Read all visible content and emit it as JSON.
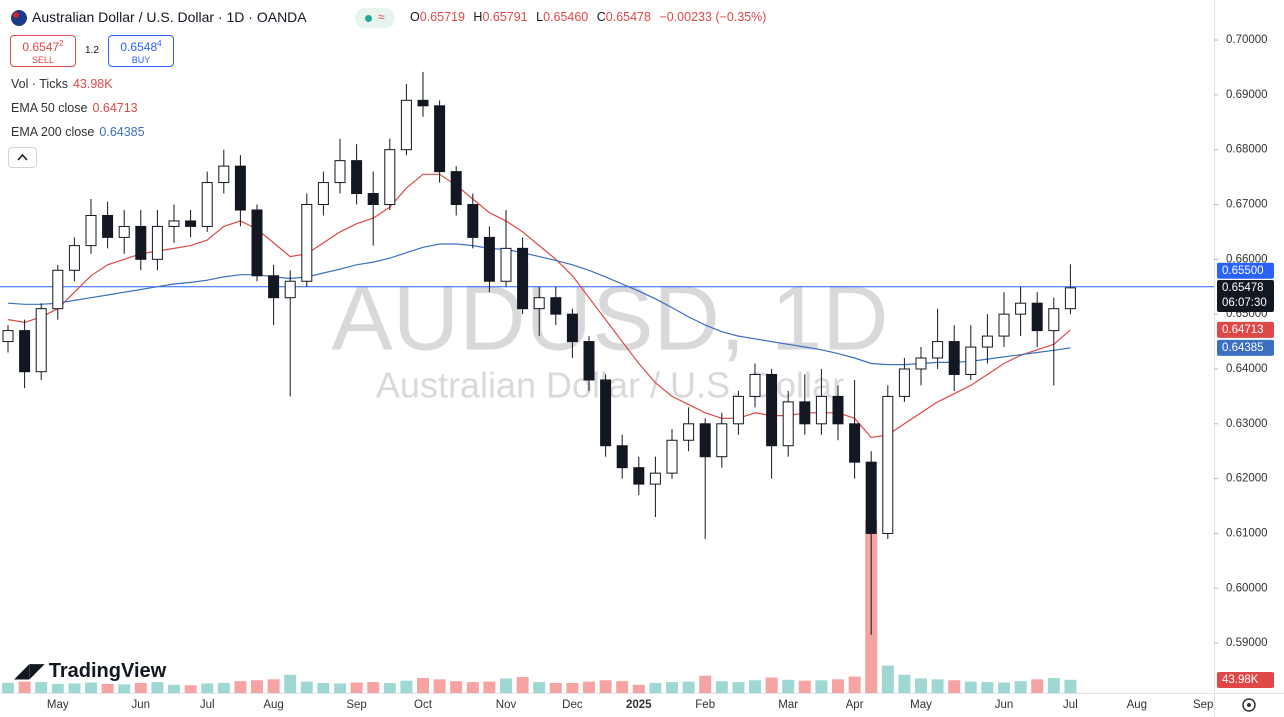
{
  "header": {
    "symbol": "Australian Dollar / U.S. Dollar · 1D · OANDA",
    "ohlc": [
      {
        "label": "O",
        "value": "0.65719"
      },
      {
        "label": "H",
        "value": "0.65791"
      },
      {
        "label": "L",
        "value": "0.65460"
      },
      {
        "label": "C",
        "value": "0.65478"
      }
    ],
    "change": "−0.00233 (−0.35%)"
  },
  "trade": {
    "sell_price": "0.6547",
    "sell_pip": "2",
    "sell": "SELL",
    "spread": "1.2",
    "buy_price": "0.6548",
    "buy_pip": "4",
    "buy": "BUY"
  },
  "watermark": {
    "title": "AUDUSD, 1D",
    "subtitle": "Australian Dollar / U.S. Dollar"
  },
  "logo": "TradingView",
  "chart_data": {
    "type": "candlestick",
    "categories": [
      null,
      null,
      null,
      "May",
      null,
      null,
      null,
      null,
      "Jun",
      null,
      null,
      null,
      "Jul",
      null,
      null,
      null,
      "Aug",
      null,
      null,
      null,
      null,
      "Sep",
      null,
      null,
      null,
      "Oct",
      null,
      null,
      null,
      null,
      "Nov",
      null,
      null,
      null,
      "Dec",
      null,
      null,
      null,
      "2025",
      null,
      null,
      null,
      "Feb",
      null,
      null,
      null,
      null,
      "Mar",
      null,
      null,
      null,
      "Apr",
      null,
      null,
      null,
      "May",
      null,
      null,
      null,
      null,
      "Jun",
      null,
      null,
      null,
      "Jul",
      null,
      null,
      null,
      "Aug",
      null,
      null,
      null,
      "Sep",
      null
    ],
    "open": [
      0.645,
      0.647,
      0.6395,
      0.651,
      0.658,
      0.6625,
      0.668,
      0.664,
      0.666,
      0.66,
      0.666,
      0.667,
      0.666,
      0.674,
      0.677,
      0.669,
      0.657,
      0.653,
      0.656,
      0.67,
      0.674,
      0.678,
      0.672,
      0.67,
      0.68,
      0.689,
      0.688,
      0.676,
      0.67,
      0.664,
      0.656,
      0.662,
      0.651,
      0.653,
      0.65,
      0.645,
      0.638,
      0.626,
      0.622,
      0.619,
      0.621,
      0.627,
      0.63,
      0.624,
      0.63,
      0.635,
      0.639,
      0.626,
      0.634,
      0.63,
      0.635,
      0.63,
      0.623,
      0.61,
      0.635,
      0.64,
      0.642,
      0.645,
      0.639,
      0.644,
      0.646,
      0.65,
      0.652,
      0.647,
      0.651,
      null,
      null,
      null,
      null,
      null,
      null,
      null,
      null,
      null
    ],
    "high": [
      0.648,
      0.649,
      0.652,
      0.659,
      0.664,
      0.671,
      0.6705,
      0.669,
      0.669,
      0.669,
      0.67,
      0.669,
      0.676,
      0.68,
      0.679,
      0.67,
      0.659,
      0.658,
      0.672,
      0.676,
      0.682,
      0.681,
      0.676,
      0.682,
      0.692,
      0.6942,
      0.689,
      0.677,
      0.672,
      0.666,
      0.669,
      0.664,
      0.655,
      0.655,
      0.651,
      0.646,
      0.639,
      0.628,
      0.624,
      0.624,
      0.629,
      0.633,
      0.631,
      0.632,
      0.636,
      0.641,
      0.64,
      0.636,
      0.639,
      0.64,
      0.637,
      0.638,
      0.625,
      0.637,
      0.642,
      0.644,
      0.651,
      0.648,
      0.648,
      0.65,
      0.654,
      0.655,
      0.654,
      0.653,
      0.6591,
      null,
      null,
      null,
      null,
      null,
      null,
      null,
      null,
      null
    ],
    "low": [
      0.643,
      0.6365,
      0.638,
      0.649,
      0.656,
      0.661,
      0.662,
      0.661,
      0.658,
      0.658,
      0.663,
      0.664,
      0.665,
      0.672,
      0.666,
      0.656,
      0.648,
      0.635,
      0.655,
      0.668,
      0.672,
      0.67,
      0.6625,
      0.669,
      0.679,
      0.686,
      0.674,
      0.668,
      0.662,
      0.654,
      0.655,
      0.65,
      0.646,
      0.648,
      0.642,
      0.636,
      0.624,
      0.62,
      0.617,
      0.613,
      0.62,
      0.625,
      0.609,
      0.622,
      0.628,
      0.633,
      0.62,
      0.624,
      0.628,
      0.628,
      0.627,
      0.62,
      0.5915,
      0.609,
      0.634,
      0.637,
      0.64,
      0.636,
      0.638,
      0.641,
      0.644,
      0.646,
      0.644,
      0.637,
      0.65,
      null,
      null,
      null,
      null,
      null,
      null,
      null,
      null,
      null
    ],
    "close": [
      0.647,
      0.6395,
      0.651,
      0.658,
      0.6625,
      0.668,
      0.664,
      0.666,
      0.66,
      0.666,
      0.667,
      0.666,
      0.674,
      0.677,
      0.669,
      0.657,
      0.653,
      0.656,
      0.67,
      0.674,
      0.678,
      0.672,
      0.67,
      0.68,
      0.689,
      0.688,
      0.676,
      0.67,
      0.664,
      0.656,
      0.662,
      0.651,
      0.653,
      0.65,
      0.645,
      0.638,
      0.626,
      0.622,
      0.619,
      0.621,
      0.627,
      0.63,
      0.624,
      0.63,
      0.635,
      0.639,
      0.626,
      0.634,
      0.63,
      0.635,
      0.63,
      0.623,
      0.61,
      0.635,
      0.64,
      0.642,
      0.645,
      0.639,
      0.644,
      0.646,
      0.65,
      0.652,
      0.647,
      0.651,
      0.6548,
      null,
      null,
      null,
      null,
      null,
      null,
      null,
      null,
      null
    ],
    "up_color": "#ffffff",
    "down_color": "#131722",
    "outline_color": "#131722",
    "volume": {
      "name": "Vol · Ticks",
      "up_color": "#9fd8d2",
      "down_color": "#f5a3a3",
      "values": [
        22,
        25,
        24,
        20,
        21,
        23,
        20,
        19,
        22,
        24,
        18,
        17,
        21,
        22,
        26,
        28,
        30,
        40,
        25,
        22,
        21,
        23,
        24,
        22,
        27,
        33,
        30,
        26,
        24,
        25,
        32,
        35,
        24,
        22,
        22,
        25,
        28,
        26,
        18,
        22,
        24,
        25,
        38,
        26,
        24,
        28,
        34,
        29,
        27,
        28,
        30,
        36,
        380,
        60,
        40,
        32,
        30,
        28,
        25,
        24,
        23,
        26,
        30,
        33,
        29,
        null,
        null,
        null,
        null,
        null,
        null,
        null,
        null,
        null
      ],
      "current": {
        "value": 43.98,
        "label": "43.98K"
      },
      "tag_color": "#e04848"
    },
    "series": [
      {
        "name": "EMA 50 close",
        "color": "#e04848",
        "current": 0.64713,
        "values": [
          0.649,
          0.6485,
          0.6495,
          0.651,
          0.654,
          0.657,
          0.659,
          0.66,
          0.661,
          0.6615,
          0.662,
          0.6625,
          0.6635,
          0.666,
          0.667,
          0.6655,
          0.663,
          0.6605,
          0.661,
          0.663,
          0.665,
          0.6665,
          0.6675,
          0.6695,
          0.673,
          0.6755,
          0.6755,
          0.6735,
          0.671,
          0.6685,
          0.667,
          0.665,
          0.6625,
          0.66,
          0.657,
          0.653,
          0.649,
          0.645,
          0.641,
          0.6375,
          0.635,
          0.6335,
          0.632,
          0.631,
          0.631,
          0.632,
          0.6315,
          0.6315,
          0.632,
          0.632,
          0.632,
          0.631,
          0.6275,
          0.628,
          0.63,
          0.632,
          0.634,
          0.6355,
          0.637,
          0.639,
          0.641,
          0.6425,
          0.6435,
          0.6445,
          0.64713,
          null,
          null,
          null,
          null,
          null,
          null,
          null,
          null,
          null
        ]
      },
      {
        "name": "EMA 200 close",
        "color": "#3b6fc4",
        "current": 0.64385,
        "values": [
          0.652,
          0.6518,
          0.6518,
          0.652,
          0.6525,
          0.653,
          0.6535,
          0.654,
          0.6545,
          0.655,
          0.6555,
          0.6558,
          0.6562,
          0.6568,
          0.6572,
          0.6572,
          0.6568,
          0.6565,
          0.6568,
          0.6575,
          0.6582,
          0.659,
          0.6595,
          0.6602,
          0.6612,
          0.6622,
          0.6628,
          0.6628,
          0.6625,
          0.662,
          0.6618,
          0.6612,
          0.6605,
          0.6598,
          0.659,
          0.658,
          0.6568,
          0.6555,
          0.6542,
          0.6528,
          0.6512,
          0.6495,
          0.648,
          0.6468,
          0.646,
          0.6455,
          0.645,
          0.6445,
          0.644,
          0.6435,
          0.6428,
          0.642,
          0.641,
          0.6408,
          0.6408,
          0.641,
          0.6412,
          0.6412,
          0.6414,
          0.6418,
          0.6422,
          0.6426,
          0.643,
          0.6434,
          0.64385,
          null,
          null,
          null,
          null,
          null,
          null,
          null,
          null,
          null
        ]
      }
    ],
    "price_line": {
      "value": 0.655,
      "label": "0.65500",
      "color": "#2962ff"
    },
    "last_price": 0.65478,
    "countdown": "06:07:30",
    "ylim": [
      0.5809,
      0.7073
    ],
    "yticks": [
      {
        "value": 0.59,
        "label": "0.59000"
      },
      {
        "value": 0.6,
        "label": "0.60000"
      },
      {
        "value": 0.61,
        "label": "0.61000"
      },
      {
        "value": 0.62,
        "label": "0.62000"
      },
      {
        "value": 0.63,
        "label": "0.63000"
      },
      {
        "value": 0.64,
        "label": "0.64000"
      },
      {
        "value": 0.65,
        "label": "0.65000"
      },
      {
        "value": 0.66,
        "label": "0.66000"
      },
      {
        "value": 0.67,
        "label": "0.67000"
      },
      {
        "value": 0.68,
        "label": "0.68000"
      },
      {
        "value": 0.69,
        "label": "0.69000"
      },
      {
        "value": 0.7,
        "label": "0.70000"
      }
    ],
    "grid": false
  }
}
